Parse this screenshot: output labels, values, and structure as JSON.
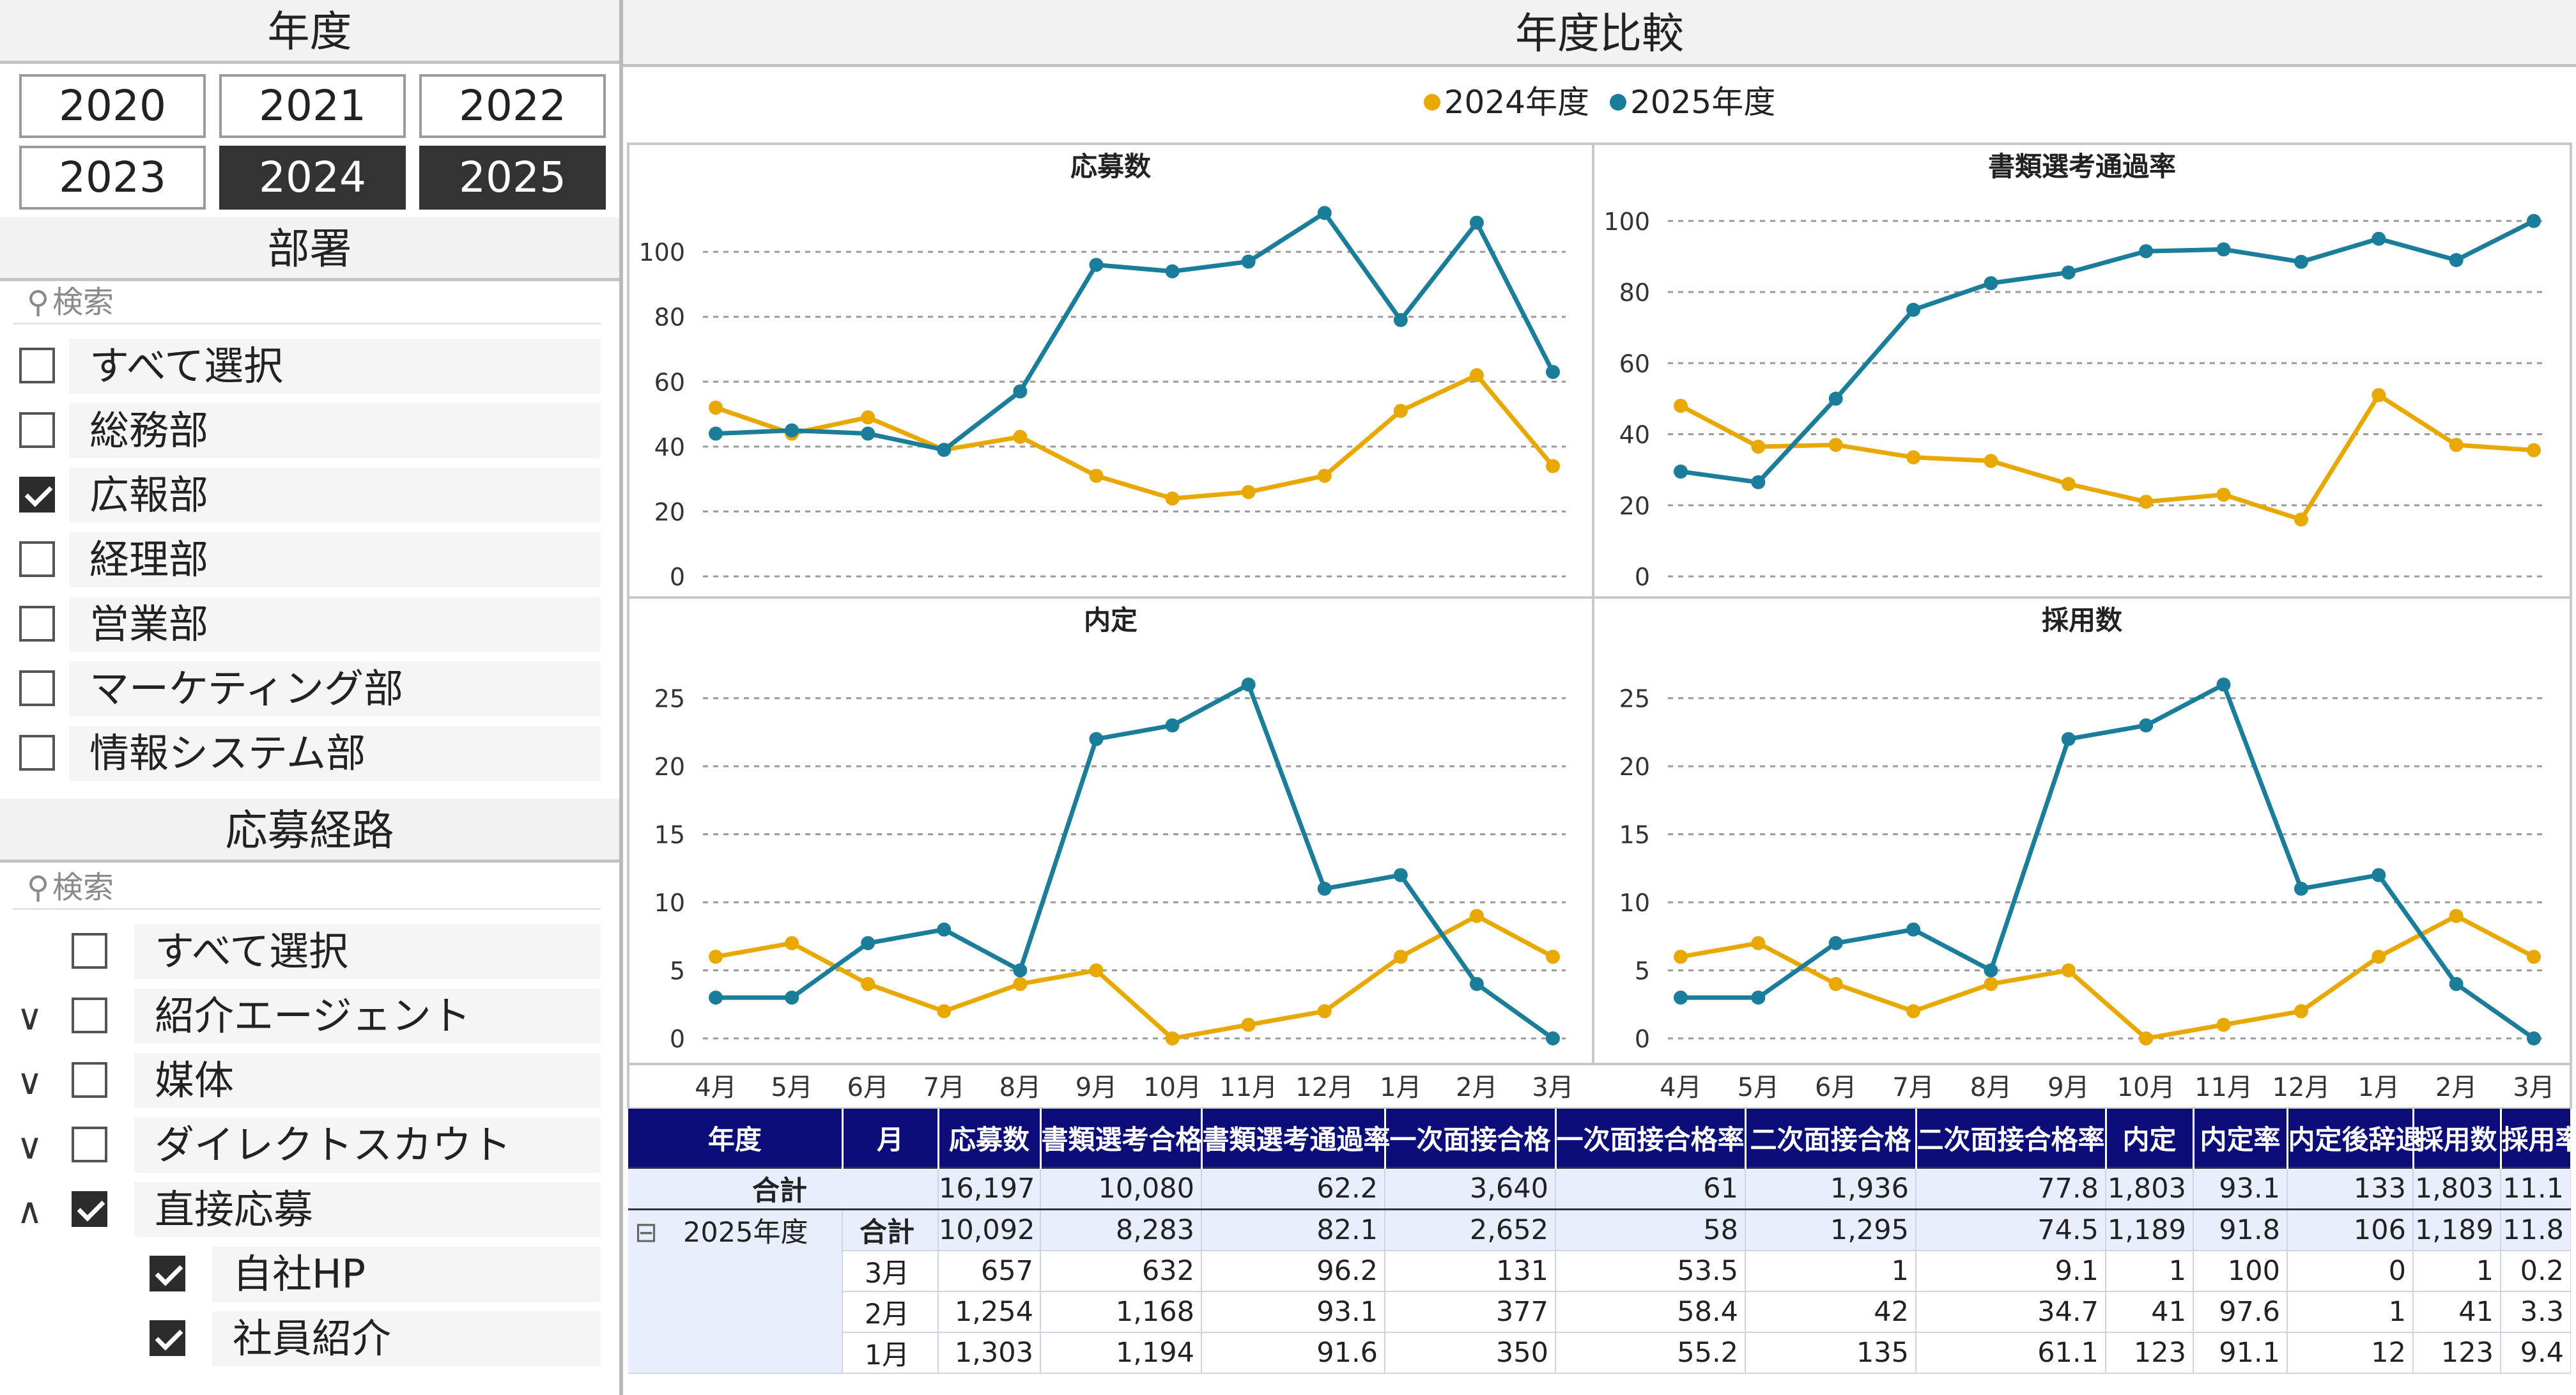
{
  "year_slicer": {
    "title": "年度",
    "years": [
      {
        "label": "2020",
        "selected": false
      },
      {
        "label": "2021",
        "selected": false
      },
      {
        "label": "2022",
        "selected": false
      },
      {
        "label": "2023",
        "selected": false
      },
      {
        "label": "2024",
        "selected": true
      },
      {
        "label": "2025",
        "selected": true
      }
    ]
  },
  "dept_slicer": {
    "title": "部署",
    "search_placeholder": "検索",
    "items": [
      {
        "label": "すべて選択",
        "checked": false
      },
      {
        "label": "総務部",
        "checked": false
      },
      {
        "label": "広報部",
        "checked": true
      },
      {
        "label": "経理部",
        "checked": false
      },
      {
        "label": "営業部",
        "checked": false
      },
      {
        "label": "マーケティング部",
        "checked": false
      },
      {
        "label": "情報システム部",
        "checked": false
      }
    ]
  },
  "route_slicer": {
    "title": "応募経路",
    "search_placeholder": "検索",
    "items": [
      {
        "label": "すべて選択",
        "checked": false,
        "expander": "",
        "level": 0
      },
      {
        "label": "紹介エージェント",
        "checked": false,
        "expander": "∨",
        "level": 0
      },
      {
        "label": "媒体",
        "checked": false,
        "expander": "∨",
        "level": 0
      },
      {
        "label": "ダイレクトスカウト",
        "checked": false,
        "expander": "∨",
        "level": 0
      },
      {
        "label": "直接応募",
        "checked": true,
        "expander": "∧",
        "level": 0
      },
      {
        "label": "自社HP",
        "checked": true,
        "expander": "",
        "level": 1
      },
      {
        "label": "社員紹介",
        "checked": true,
        "expander": "",
        "level": 1
      }
    ]
  },
  "comparison": {
    "title": "年度比較",
    "legend": [
      {
        "label": "2024年度",
        "color": "#e8a800"
      },
      {
        "label": "2025年度",
        "color": "#1a7d9a"
      }
    ]
  },
  "chart_data": [
    {
      "type": "line",
      "title": "応募数",
      "categories": [
        "4月",
        "5月",
        "6月",
        "7月",
        "8月",
        "9月",
        "10月",
        "11月",
        "12月",
        "1月",
        "2月",
        "3月"
      ],
      "ylim": [
        0,
        115
      ],
      "yticks": [
        0,
        20,
        40,
        60,
        80,
        100
      ],
      "grid": true,
      "series": [
        {
          "name": "2024年度",
          "color": "#e8a800",
          "values": [
            52,
            44,
            49,
            39,
            43,
            31,
            24,
            26,
            31,
            51,
            62,
            34
          ]
        },
        {
          "name": "2025年度",
          "color": "#1a7d9a",
          "values": [
            44,
            45,
            44,
            39,
            57,
            96,
            94,
            97,
            112,
            79,
            109,
            63
          ]
        }
      ]
    },
    {
      "type": "line",
      "title": "書類選考通過率",
      "categories": [
        "4月",
        "5月",
        "6月",
        "7月",
        "8月",
        "9月",
        "10月",
        "11月",
        "12月",
        "1月",
        "2月",
        "3月"
      ],
      "ylim": [
        0,
        105
      ],
      "yticks": [
        0,
        20,
        40,
        60,
        80,
        100
      ],
      "grid": true,
      "series": [
        {
          "name": "2024年度",
          "color": "#e8a800",
          "values": [
            48,
            36.5,
            37,
            33.5,
            32.5,
            26,
            21,
            23,
            16,
            51,
            37,
            35.5
          ]
        },
        {
          "name": "2025年度",
          "color": "#1a7d9a",
          "values": [
            29.5,
            26.5,
            50,
            75,
            82.5,
            85.5,
            91.5,
            92,
            88.5,
            95,
            89,
            100
          ]
        }
      ]
    },
    {
      "type": "line",
      "title": "内定",
      "categories": [
        "4月",
        "5月",
        "6月",
        "7月",
        "8月",
        "9月",
        "10月",
        "11月",
        "12月",
        "1月",
        "2月",
        "3月"
      ],
      "ylim": [
        0,
        27
      ],
      "yticks": [
        0,
        5,
        10,
        15,
        20,
        25
      ],
      "grid": true,
      "series": [
        {
          "name": "2024年度",
          "color": "#e8a800",
          "values": [
            6,
            7,
            4,
            2,
            4,
            5,
            0,
            1,
            2,
            6,
            9,
            6
          ]
        },
        {
          "name": "2025年度",
          "color": "#1a7d9a",
          "values": [
            3,
            3,
            7,
            8,
            5,
            22,
            23,
            26,
            11,
            12,
            4,
            0
          ]
        }
      ]
    },
    {
      "type": "line",
      "title": "採用数",
      "categories": [
        "4月",
        "5月",
        "6月",
        "7月",
        "8月",
        "9月",
        "10月",
        "11月",
        "12月",
        "1月",
        "2月",
        "3月"
      ],
      "ylim": [
        0,
        27
      ],
      "yticks": [
        0,
        5,
        10,
        15,
        20,
        25
      ],
      "grid": true,
      "series": [
        {
          "name": "2024年度",
          "color": "#e8a800",
          "values": [
            6,
            7,
            4,
            2,
            4,
            5,
            0,
            1,
            2,
            6,
            9,
            6
          ]
        },
        {
          "name": "2025年度",
          "color": "#1a7d9a",
          "values": [
            3,
            3,
            7,
            8,
            5,
            22,
            23,
            26,
            11,
            12,
            4,
            0
          ]
        }
      ]
    }
  ],
  "table": {
    "headers": [
      "年度",
      "月",
      "応募数",
      "書類選考合格",
      "書類選考通過率",
      "一次面接合格",
      "一次面接合格率",
      "二次面接合格",
      "二次面接合格率",
      "内定",
      "内定率",
      "内定後辞退",
      "採用数",
      "採用率"
    ],
    "total": {
      "label": "合計",
      "values": [
        "16,197",
        "10,080",
        "62.2",
        "3,640",
        "61",
        "1,936",
        "77.8",
        "1,803",
        "93.1",
        "133",
        "1,803",
        "11.1"
      ]
    },
    "group": {
      "year": "2025年度",
      "expander": "⊟",
      "subtotal_label": "合計",
      "subtotal": [
        "10,092",
        "8,283",
        "82.1",
        "2,652",
        "58",
        "1,295",
        "74.5",
        "1,189",
        "91.8",
        "106",
        "1,189",
        "11.8"
      ]
    },
    "rows": [
      {
        "month": "3月",
        "values": [
          "657",
          "632",
          "96.2",
          "131",
          "53.5",
          "1",
          "9.1",
          "1",
          "100",
          "0",
          "1",
          "0.2"
        ]
      },
      {
        "month": "2月",
        "values": [
          "1,254",
          "1,168",
          "93.1",
          "377",
          "58.4",
          "42",
          "34.7",
          "41",
          "97.6",
          "1",
          "41",
          "3.3"
        ]
      },
      {
        "month": "1月",
        "values": [
          "1,303",
          "1,194",
          "91.6",
          "350",
          "55.2",
          "135",
          "61.1",
          "123",
          "91.1",
          "12",
          "123",
          "9.4"
        ]
      }
    ]
  }
}
